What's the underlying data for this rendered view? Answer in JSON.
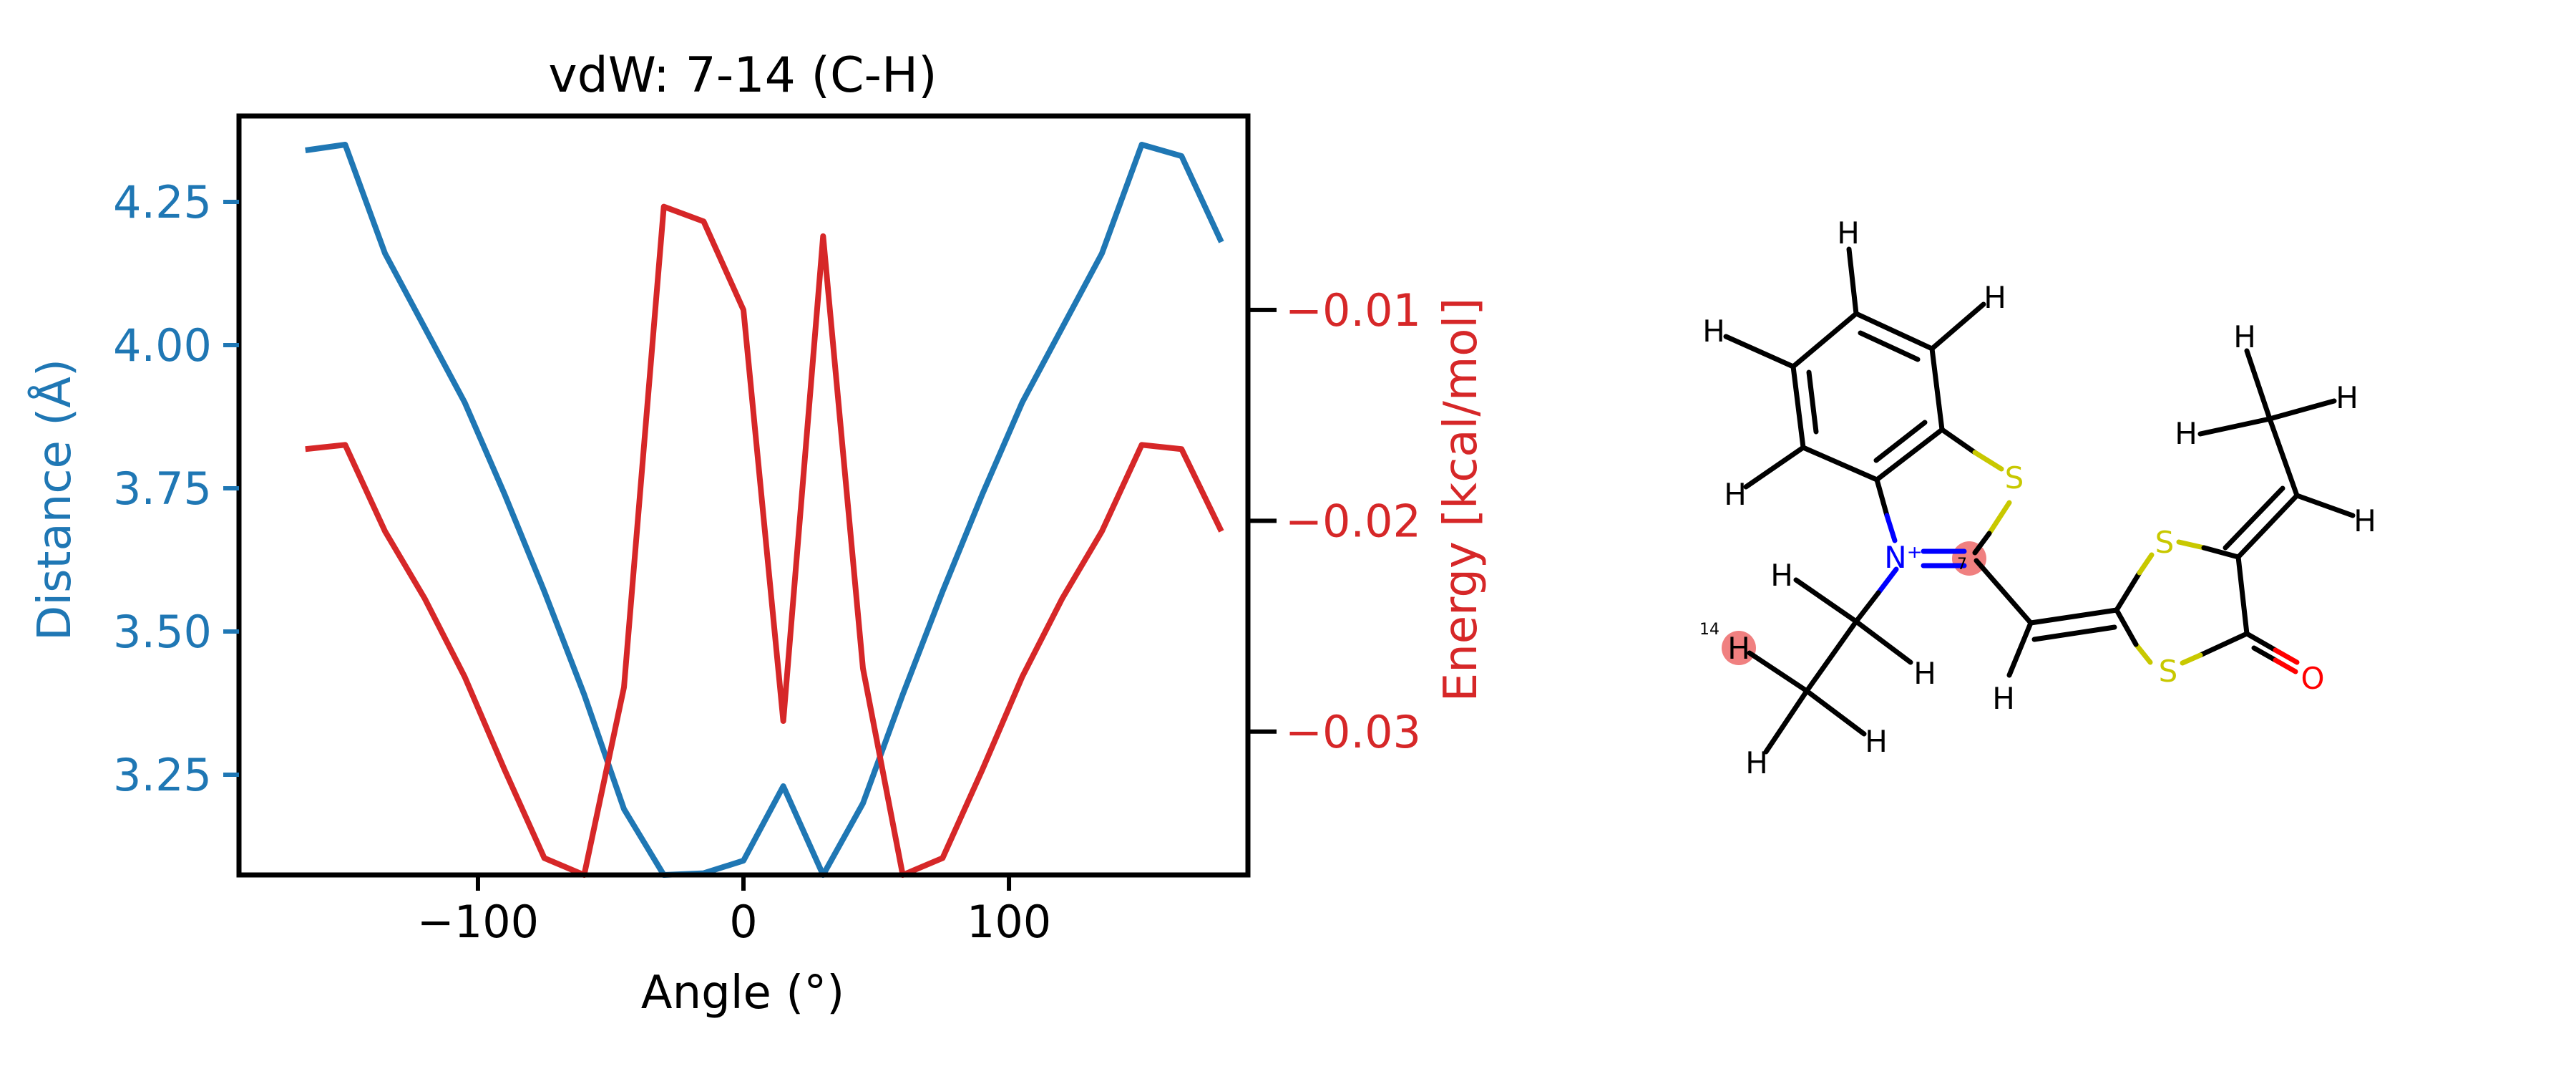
{
  "colors": {
    "distance": "#1f77b4",
    "energy": "#d62728",
    "axis": "#000000",
    "sulfur": "#c8c800",
    "nitrogen": "#0000ff",
    "oxygen": "#ff0000",
    "highlight": "#f08080"
  },
  "chart_data": {
    "type": "line",
    "title": "vdW: 7-14 (C-H)",
    "xlabel": "Angle (°)",
    "ylabel_left": "Distance (Å)",
    "ylabel_right": "Energy [kcal/mol]",
    "xlim": [
      -190,
      190
    ],
    "ylim_left": [
      3.075,
      4.4
    ],
    "ylim_right": [
      -0.0368,
      -0.0008
    ],
    "xticks": [
      -100,
      0,
      100
    ],
    "xtick_labels": [
      "−100",
      "0",
      "100"
    ],
    "yticks_left": [
      3.25,
      3.5,
      3.75,
      4.0,
      4.25
    ],
    "ytick_labels_left": [
      "3.25",
      "3.50",
      "3.75",
      "4.00",
      "4.25"
    ],
    "yticks_right": [
      -0.03,
      -0.02,
      -0.01
    ],
    "ytick_labels_right": [
      "−0.03",
      "−0.02",
      "−0.01"
    ],
    "x": [
      -165,
      -150,
      -135,
      -120,
      -105,
      -90,
      -75,
      -60,
      -45,
      -30,
      -15,
      0,
      15,
      30,
      45,
      60,
      75,
      90,
      105,
      120,
      135,
      150,
      165,
      180
    ],
    "series": [
      {
        "name": "Distance",
        "axis": "left",
        "values": [
          4.34,
          4.35,
          4.16,
          4.03,
          3.9,
          3.74,
          3.57,
          3.39,
          3.19,
          3.075,
          3.078,
          3.1,
          3.23,
          3.075,
          3.2,
          3.39,
          3.57,
          3.74,
          3.9,
          4.03,
          4.16,
          4.35,
          4.33,
          4.18
        ]
      },
      {
        "name": "Energy",
        "axis": "right",
        "values": [
          -0.0166,
          -0.0164,
          -0.0205,
          -0.0237,
          -0.0274,
          -0.0318,
          -0.036,
          -0.0368,
          -0.0279,
          -0.0051,
          -0.0058,
          -0.01,
          -0.0295,
          -0.0065,
          -0.027,
          -0.0368,
          -0.036,
          -0.0318,
          -0.0274,
          -0.0237,
          -0.0205,
          -0.0164,
          -0.0166,
          -0.0205
        ]
      }
    ]
  },
  "molecule": {
    "atoms": [
      {
        "label": "H"
      },
      {
        "label": "H"
      },
      {
        "label": "H"
      },
      {
        "label": "H"
      },
      {
        "label": "S"
      },
      {
        "label": "N⁺"
      },
      {
        "label": "H"
      },
      {
        "label": "H"
      },
      {
        "label": "H"
      },
      {
        "label": "H"
      },
      {
        "label": "H"
      },
      {
        "label": "S"
      },
      {
        "label": "S"
      },
      {
        "label": "O"
      },
      {
        "label": "H"
      },
      {
        "label": "H"
      },
      {
        "label": "H"
      },
      {
        "label": "H"
      }
    ],
    "atom_index_labels": [
      "7",
      "14"
    ]
  }
}
